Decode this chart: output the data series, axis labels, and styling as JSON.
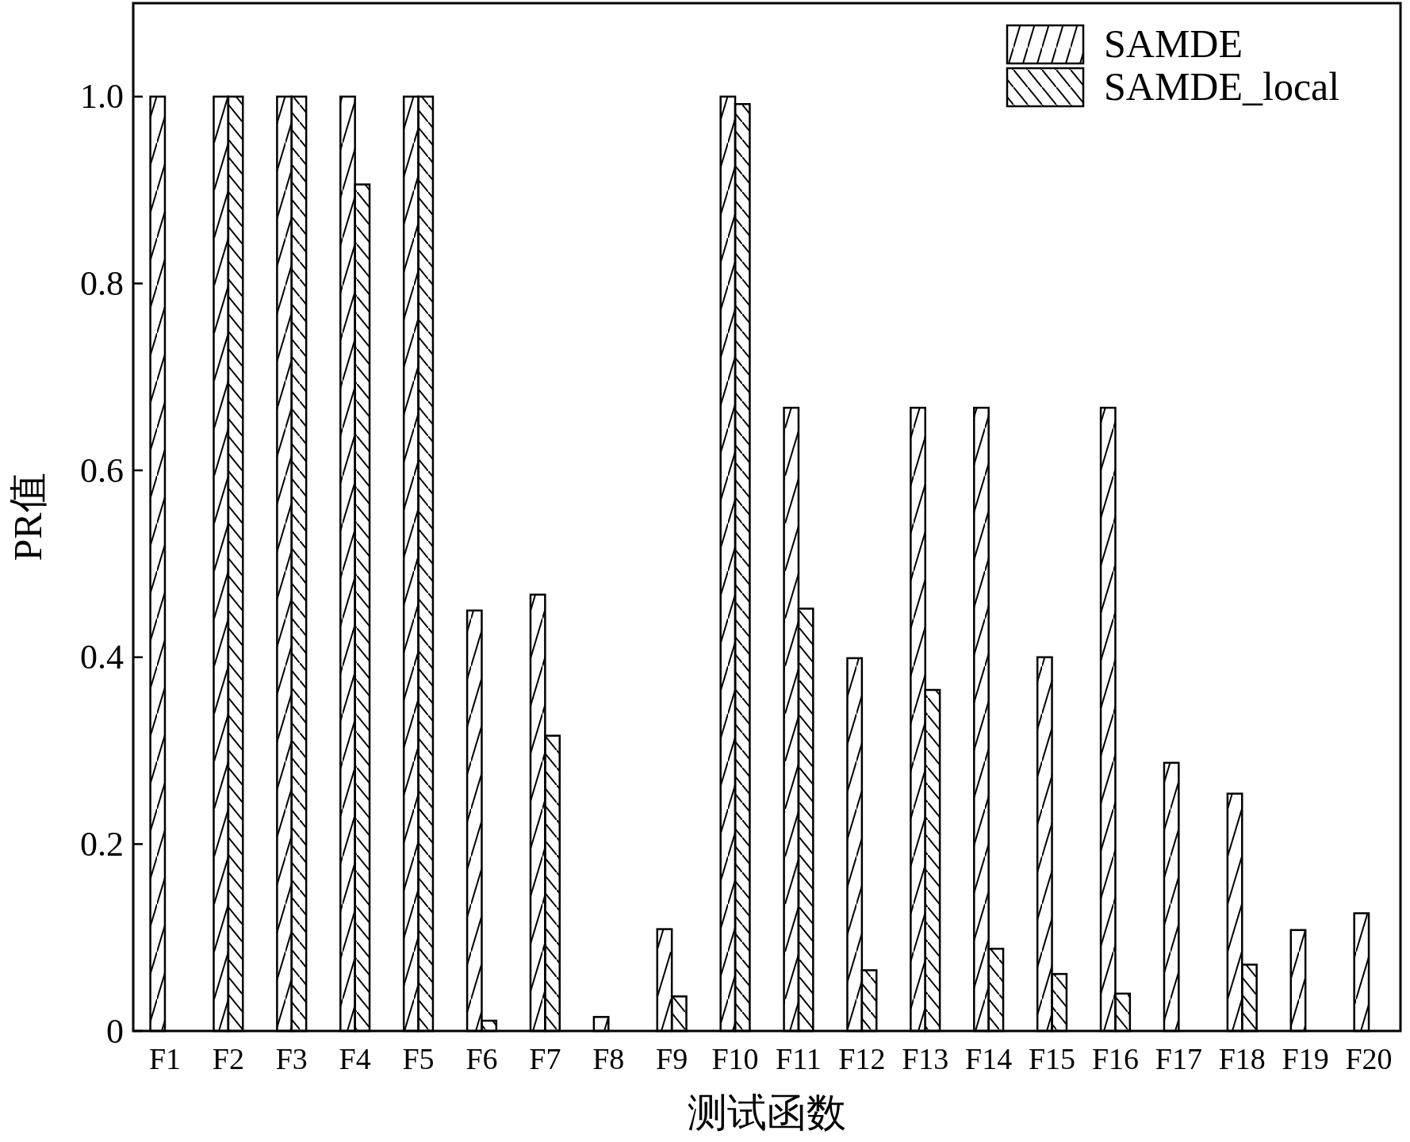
{
  "chart_data": {
    "type": "bar",
    "xlabel": "测试函数",
    "ylabel": "PR值",
    "categories": [
      "F1",
      "F2",
      "F3",
      "F4",
      "F5",
      "F6",
      "F7",
      "F8",
      "F9",
      "F10",
      "F11",
      "F12",
      "F13",
      "F14",
      "F15",
      "F16",
      "F17",
      "F18",
      "F19",
      "F20"
    ],
    "series": [
      {
        "name": "SAMDE",
        "color": "#000000",
        "values": [
          1.0,
          1.0,
          1.0,
          1.0,
          1.0,
          0.45,
          0.467,
          0.015,
          0.109,
          1.0,
          0.667,
          0.399,
          0.667,
          0.667,
          0.4,
          0.667,
          0.287,
          0.254,
          0.108,
          0.126
        ]
      },
      {
        "name": "SAMDE_local",
        "color": "#000000",
        "values": [
          0,
          1.0,
          1.0,
          0.906,
          1.0,
          0.011,
          0.316,
          0,
          0.037,
          0.992,
          0.452,
          0.065,
          0.365,
          0.088,
          0.061,
          0.04,
          0,
          0.071,
          0,
          0
        ]
      }
    ],
    "ylim": [
      0,
      1.1
    ],
    "yticks": [
      0,
      0.2,
      0.4,
      0.6,
      0.8,
      {
        "value": 1,
        "label": "1.0"
      }
    ],
    "legend": "top right"
  }
}
